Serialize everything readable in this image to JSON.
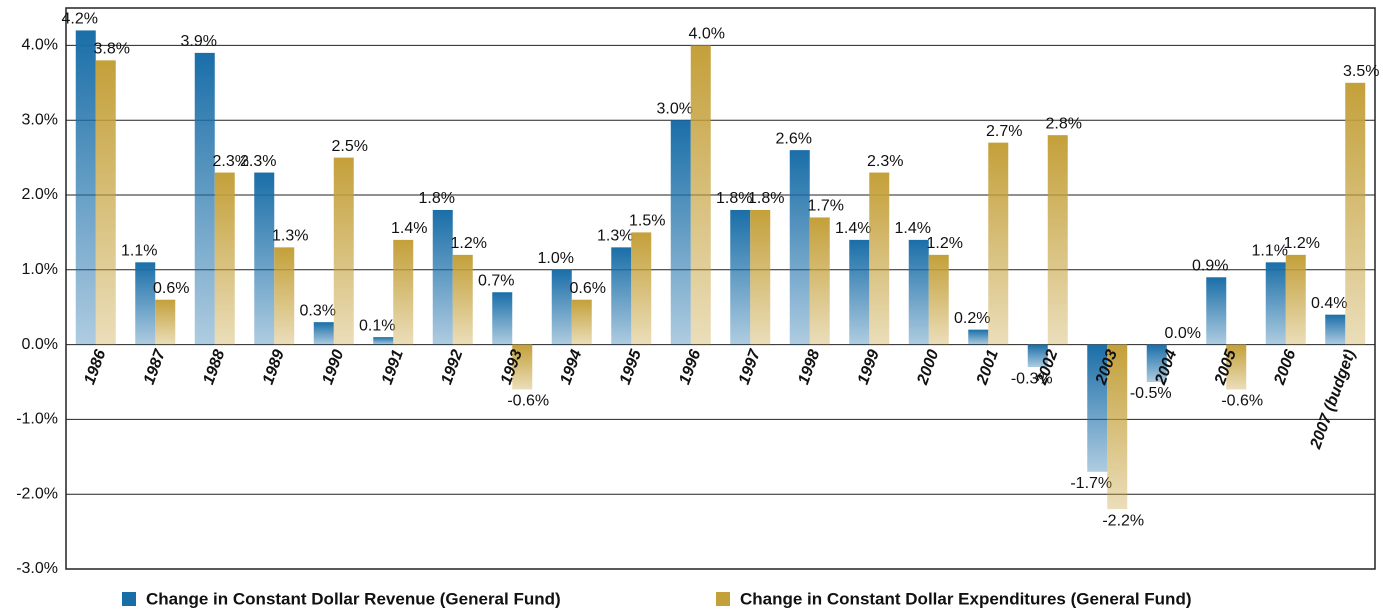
{
  "chart_data": {
    "type": "bar",
    "categories": [
      "1986",
      "1987",
      "1988",
      "1989",
      "1990",
      "1991",
      "1992",
      "1993",
      "1994",
      "1995",
      "1996",
      "1997",
      "1998",
      "1999",
      "2000",
      "2001",
      "2002",
      "2003",
      "2004",
      "2005",
      "2006",
      "2007 (budget)"
    ],
    "series": [
      {
        "name": "Change in Constant Dollar Revenue (General Fund)",
        "color": "#1a6ea8",
        "values": [
          4.2,
          1.1,
          3.9,
          2.3,
          0.3,
          0.1,
          1.8,
          0.7,
          1.0,
          1.3,
          3.0,
          1.8,
          2.6,
          1.4,
          1.4,
          0.2,
          -0.3,
          -1.7,
          -0.5,
          0.9,
          1.1,
          0.4
        ],
        "value_labels": [
          "4.2%",
          "1.1%",
          "3.9%",
          "2.3%",
          "0.3%",
          "0.1%",
          "1.8%",
          "0.7%",
          "1.0%",
          "1.3%",
          "3.0%",
          "1.8%",
          "2.6%",
          "1.4%",
          "1.4%",
          "0.2%",
          "-0.3%",
          "-1.7%",
          "-0.5%",
          "0.9%",
          "1.1%",
          "0.4%"
        ]
      },
      {
        "name": "Change in Constant Dollar Expenditures (General Fund)",
        "color": "#c4a03a",
        "values": [
          3.8,
          0.6,
          2.3,
          1.3,
          2.5,
          1.4,
          1.2,
          -0.6,
          0.6,
          1.5,
          4.0,
          1.8,
          1.7,
          2.3,
          1.2,
          2.7,
          2.8,
          -2.2,
          0.0,
          -0.6,
          1.2,
          3.5
        ],
        "value_labels": [
          "3.8%",
          "0.6%",
          "2.3%",
          "1.3%",
          "2.5%",
          "1.4%",
          "1.2%",
          "-0.6%",
          "0.6%",
          "1.5%",
          "4.0%",
          "1.8%",
          "1.7%",
          "2.3%",
          "1.2%",
          "2.7%",
          "2.8%",
          "-2.2%",
          "0.0%",
          "-0.6%",
          "1.2%",
          "3.5%"
        ]
      }
    ],
    "ylim": [
      -3,
      4.5
    ],
    "yticks": [
      {
        "value": 4,
        "label": "4.0%"
      },
      {
        "value": 3,
        "label": "3.0%"
      },
      {
        "value": 2,
        "label": "2.0%"
      },
      {
        "value": 1,
        "label": "1.0%"
      },
      {
        "value": 0,
        "label": "0.0%"
      },
      {
        "value": -1,
        "label": "-1.0%"
      },
      {
        "value": -2,
        "label": "-2.0%"
      },
      {
        "value": -3,
        "label": "-3.0%"
      }
    ],
    "grid": true,
    "legend": "bottom"
  }
}
